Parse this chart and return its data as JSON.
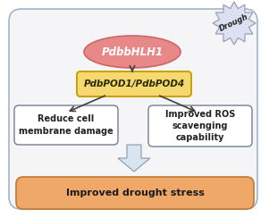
{
  "outer_box_edgecolor": "#a0b4cc",
  "outer_box_facecolor": "#f5f5f8",
  "ellipse_facecolor": "#e88888",
  "ellipse_edgecolor": "#cc6666",
  "pod_box_edgecolor": "#c8a000",
  "pod_box_facecolor": "#f5d870",
  "sub_box_edgecolor": "#708090",
  "sub_box_facecolor": "#ffffff",
  "bottom_box_edgecolor": "#c07830",
  "bottom_box_facecolor": "#f0a868",
  "starburst_facecolor": "#dde0f0",
  "starburst_edgecolor": "#9098b0",
  "big_arrow_facecolor": "#d8e4f0",
  "big_arrow_edgecolor": "#8898aa",
  "hlh1_text": "PdbbHLH1",
  "pod_text": "PdbPOD1/PdbPOD4",
  "left_box_text": "Reduce cell\nmembrane damage",
  "right_box_text": "Improved ROS\nscavenging\ncapability",
  "bottom_text": "Improved drought stress",
  "drought_text": "Drough",
  "arrow_color": "#404040",
  "text_color": "#222222"
}
